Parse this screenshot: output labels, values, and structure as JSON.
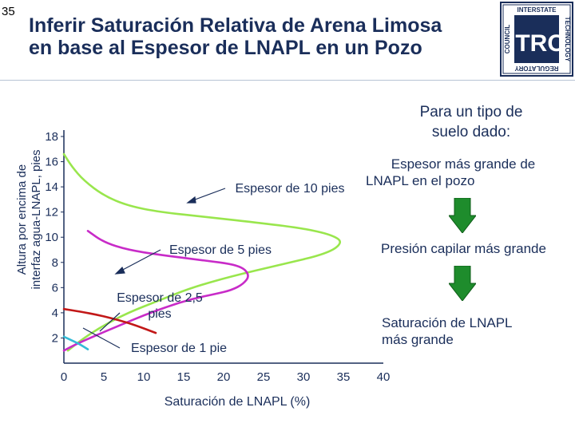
{
  "slide_number": "35",
  "title_line1": "Inferir Saturación Relativa de Arena Limosa",
  "title_line2": "en base al Espesor de LNAPL en un Pozo",
  "logo": {
    "top_text": "INTERSTATE",
    "right_text": "TECHNOLOGY",
    "bottom_text": "REGULATORY",
    "left_text": "COUNCIL",
    "mark": "ITRC"
  },
  "side": {
    "heading_line1": "Para un tipo de",
    "heading_line2": "suelo dado:",
    "step1_line1": "Espesor más grande de",
    "step1_line2": "LNAPL en el pozo",
    "step2": "Presión capilar más grande",
    "step3_line1": "Saturación de LNAPL",
    "step3_line2": "más grande",
    "arrow_icon": "green-down-arrow",
    "arrow_color": "#1e8c2c"
  },
  "chart_data": {
    "type": "line",
    "xlabel": "Saturación de LNAPL (%)",
    "ylabel_line1": "Altura por encima de",
    "ylabel_line2": "interfaz agua-LNAPL, pies",
    "xlim": [
      0,
      40
    ],
    "ylim": [
      0,
      18
    ],
    "xticks": [
      0,
      5,
      10,
      15,
      20,
      25,
      30,
      35,
      40
    ],
    "yticks": [
      2,
      4,
      6,
      8,
      10,
      12,
      14,
      16,
      18
    ],
    "grid": false,
    "legend": "none",
    "series": [
      {
        "name": "Espesor de 10 pies",
        "color": "#99e64d",
        "points": [
          [
            0,
            16.6
          ],
          [
            1,
            15.6
          ],
          [
            2.5,
            14.5
          ],
          [
            5,
            13.3
          ],
          [
            8,
            12.5
          ],
          [
            12,
            12
          ],
          [
            18,
            11.6
          ],
          [
            25,
            11.1
          ],
          [
            30,
            10.7
          ],
          [
            33.5,
            10.2
          ],
          [
            35,
            9.6
          ],
          [
            33,
            8.7
          ],
          [
            27,
            7.8
          ],
          [
            21,
            6.9
          ],
          [
            16,
            6
          ],
          [
            12,
            5
          ],
          [
            8,
            4
          ],
          [
            5,
            3
          ],
          [
            2.5,
            2
          ],
          [
            0.5,
            1
          ]
        ]
      },
      {
        "name": "Espesor de 5 pies",
        "color": "#c82bc8",
        "points": [
          [
            0,
            1
          ],
          [
            1.5,
            1.5
          ],
          [
            4,
            2.2
          ],
          [
            7,
            3
          ],
          [
            10,
            3.8
          ],
          [
            13,
            4.5
          ],
          [
            16,
            5.1
          ],
          [
            19,
            5.5
          ],
          [
            21,
            5.8
          ],
          [
            22.5,
            6.3
          ],
          [
            23.3,
            7
          ],
          [
            22,
            7.8
          ],
          [
            17,
            8.2
          ],
          [
            12,
            8.6
          ],
          [
            8,
            9
          ],
          [
            5,
            9.6
          ],
          [
            3,
            10.5
          ]
        ]
      },
      {
        "name": "Espesor de 2,5 pies",
        "color": "#c21818",
        "points": [
          [
            0,
            4.3
          ],
          [
            2,
            4.1
          ],
          [
            4.5,
            3.8
          ],
          [
            7,
            3.4
          ],
          [
            9,
            3
          ],
          [
            11.5,
            2.4
          ]
        ]
      },
      {
        "name": "Espesor de 1 pie",
        "color": "#33bbd6",
        "points": [
          [
            0,
            2.1
          ],
          [
            1,
            1.8
          ],
          [
            2,
            1.5
          ],
          [
            3,
            1.1
          ]
        ]
      }
    ],
    "annotations": [
      {
        "text": "Espesor de 10 pies",
        "target": [
          8,
          12.5
        ]
      },
      {
        "text": "Espesor de 5 pies",
        "target": [
          3,
          8.9
        ]
      },
      {
        "text_line1": "Espesor de 2,5",
        "text_line2": "pies",
        "target": [
          9,
          3
        ]
      },
      {
        "text": "Espesor de 1 pie",
        "target": [
          2,
          1.5
        ]
      }
    ]
  }
}
